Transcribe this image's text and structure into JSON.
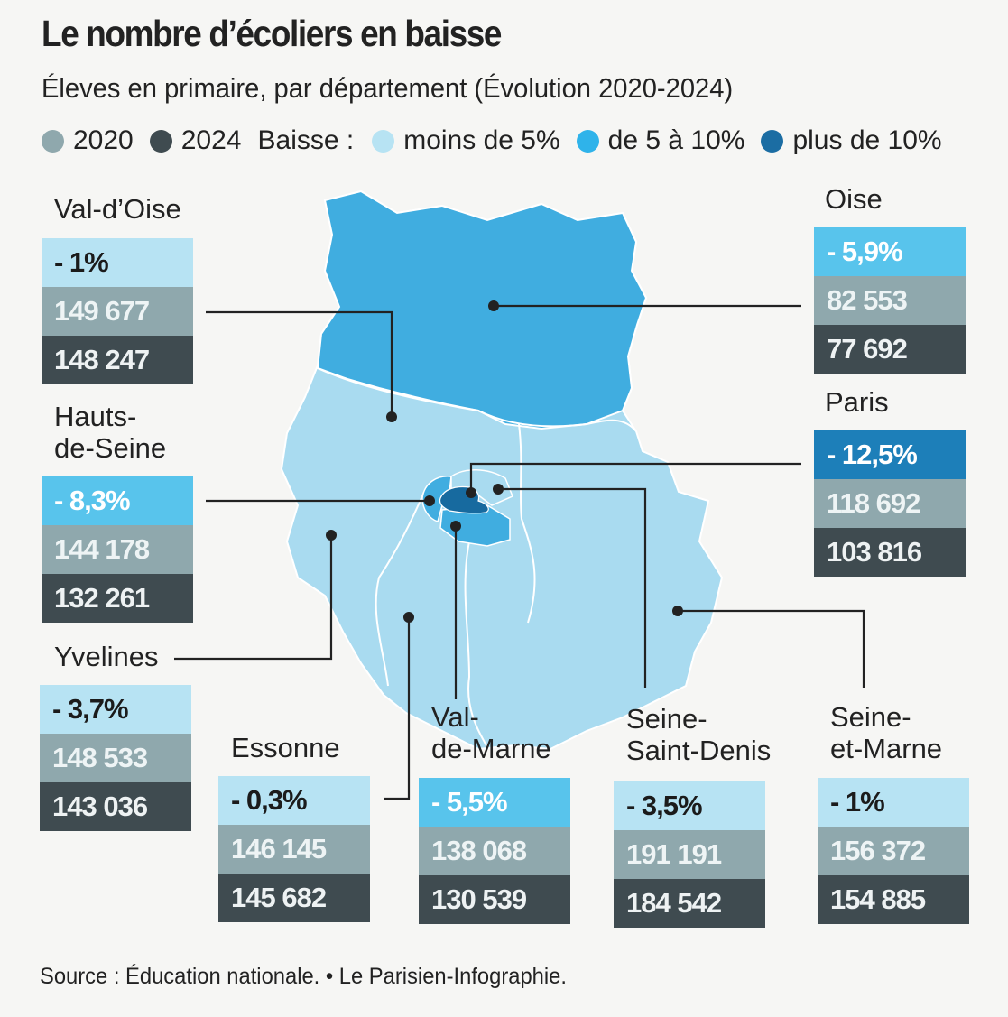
{
  "header": {
    "title": "Le nombre d’écoliers en baisse",
    "subtitle": "Éleves en primaire, par département (Évolution 2020-2024)"
  },
  "legend": {
    "year_2020": "2020",
    "year_2024": "2024",
    "baisse_label": "Baisse :",
    "low": "moins de 5%",
    "mid": "de 5 à 10%",
    "high": "plus de 10%"
  },
  "colors": {
    "low": "#b7e3f3",
    "mid": "#58c4ec",
    "high": "#1d7fb9",
    "map_low": "#a9dbf0",
    "map_mid": "#40ade0",
    "map_high": "#176a9f",
    "v2020": "#8fa8ad",
    "v2024": "#3f4b50",
    "leader": "#222222"
  },
  "departments": [
    {
      "id": "val-d-oise",
      "name": "Val-d’Oise",
      "change": "- 1%",
      "v2020": "149 677",
      "v2024": "148 247",
      "category": "low"
    },
    {
      "id": "oise",
      "name": "Oise",
      "change": "- 5,9%",
      "v2020": "82 553",
      "v2024": "77 692",
      "category": "mid"
    },
    {
      "id": "hauts-de-seine",
      "name": "Hauts-\nde-Seine",
      "change": "- 8,3%",
      "v2020": "144 178",
      "v2024": "132 261",
      "category": "mid"
    },
    {
      "id": "paris",
      "name": "Paris",
      "change": "- 12,5%",
      "v2020": "118 692",
      "v2024": "103 816",
      "category": "high"
    },
    {
      "id": "yvelines",
      "name": "Yvelines",
      "change": "- 3,7%",
      "v2020": "148 533",
      "v2024": "143 036",
      "category": "low"
    },
    {
      "id": "essonne",
      "name": "Essonne",
      "change": "- 0,3%",
      "v2020": "146 145",
      "v2024": "145 682",
      "category": "low"
    },
    {
      "id": "val-de-marne",
      "name": "Val-\nde-Marne",
      "change": "- 5,5%",
      "v2020": "138 068",
      "v2024": "130 539",
      "category": "mid"
    },
    {
      "id": "seine-saint-denis",
      "name": "Seine-\nSaint-Denis",
      "change": "- 3,5%",
      "v2020": "191 191",
      "v2024": "184 542",
      "category": "low"
    },
    {
      "id": "seine-et-marne",
      "name": "Seine-\net-Marne",
      "change": "- 1%",
      "v2020": "156 372",
      "v2024": "154 885",
      "category": "low"
    }
  ],
  "footer": {
    "source": "Source : Éducation nationale. • Le Parisien-Infographie."
  }
}
